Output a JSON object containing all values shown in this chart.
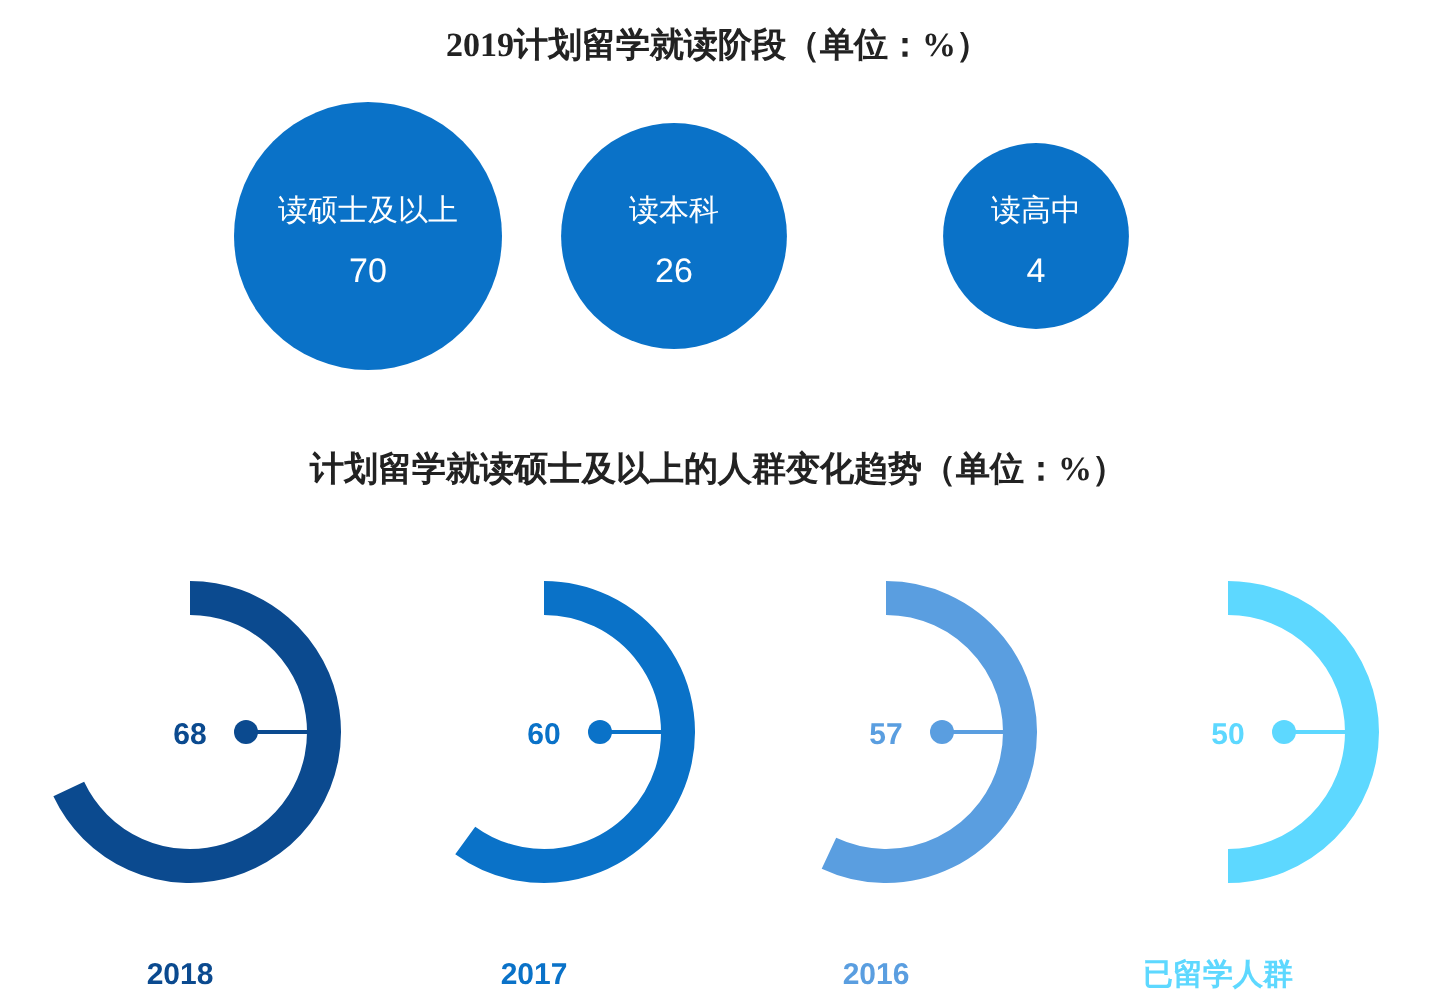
{
  "chart_data": [
    {
      "type": "other",
      "title": "2019计划留学就读阶段（单位：%）",
      "categories": [
        "读硕士及以上",
        "读本科",
        "读高中"
      ],
      "values": [
        70,
        26,
        4
      ],
      "data_labels": true,
      "color": "#0a72c8"
    },
    {
      "type": "other",
      "title": "计划留学就读硕士及以上的人群变化趋势（单位：%）",
      "categories": [
        "2018",
        "2017",
        "2016",
        "已留学人群"
      ],
      "values": [
        68,
        60,
        57,
        50
      ],
      "data_labels": true,
      "colors": [
        "#0b4a8f",
        "#0a72c8",
        "#5a9ee0",
        "#5dd8ff"
      ]
    }
  ]
}
